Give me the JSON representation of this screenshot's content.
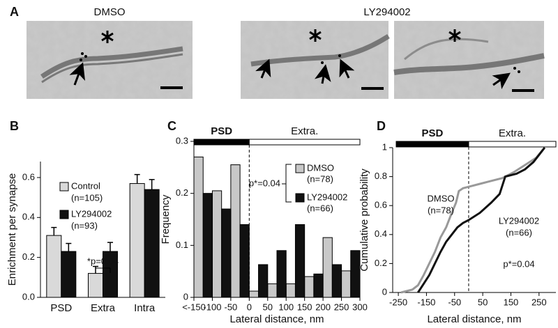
{
  "figure_a": {
    "panel": "A",
    "titles": [
      "DMSO",
      "LY294002"
    ]
  },
  "chart_data": [
    {
      "type": "bar",
      "panel": "B",
      "y_label": "Enrichment per synapse",
      "categories": [
        "PSD",
        "Extra",
        "Intra"
      ],
      "series": [
        {
          "name": "Control",
          "n": "(n=105)",
          "color": "#d9d9d9",
          "values": [
            0.31,
            0.12,
            0.57
          ],
          "errors": [
            0.04,
            0.035,
            0.045
          ]
        },
        {
          "name": "LY294002",
          "n": "(n=93)",
          "color": "#111111",
          "values": [
            0.23,
            0.23,
            0.54
          ],
          "errors": [
            0.04,
            0.045,
            0.05
          ]
        }
      ],
      "ylim": [
        0,
        0.68
      ],
      "yticks": [
        {
          "value": 0,
          "label": "0.0"
        },
        0.2,
        0.4,
        0.6
      ],
      "annotation": "*p=0.04"
    },
    {
      "type": "histogram",
      "panel": "C",
      "x_label": "Lateral distance, nm",
      "y_label": "Frequency",
      "region_labels": [
        "PSD",
        "Extra."
      ],
      "bins": [
        -150,
        -100,
        -50,
        0,
        50,
        100,
        150,
        200,
        250,
        300
      ],
      "series": [
        {
          "name": "DMSO",
          "n": "(n=78)",
          "color": "#c8c8c8",
          "values": [
            0.27,
            0.205,
            0.255,
            0.012,
            0.026,
            0.026,
            0.04,
            0.115,
            0.051
          ]
        },
        {
          "name": "LY294002",
          "n": "(n=66)",
          "color": "#111111",
          "values": [
            0.2,
            0.17,
            0.14,
            0.063,
            0.09,
            0.14,
            0.045,
            0.063,
            0.09
          ]
        }
      ],
      "xlim": [
        -150,
        300
      ],
      "xticks": [
        {
          "value": -150,
          "label": "<-150"
        },
        -100,
        -50,
        0,
        50,
        100,
        150,
        200,
        250,
        300
      ],
      "ylim": [
        0,
        0.3
      ],
      "yticks": [
        0,
        0.1,
        0.2,
        0.3
      ],
      "annotation": "p*=0.04"
    },
    {
      "type": "line",
      "panel": "D",
      "x_label": "Lateral distance, nm",
      "y_label": "Cumulative probability",
      "region_labels": [
        "PSD",
        "Extra."
      ],
      "series": [
        {
          "name": "DMSO",
          "n": "(n=78)",
          "color": "#999999",
          "x": [
            -240,
            -200,
            -180,
            -160,
            -140,
            -120,
            -100,
            -80,
            -60,
            -45,
            -35,
            -20,
            0,
            40,
            80,
            120,
            160,
            200,
            240,
            270
          ],
          "values": [
            0,
            0.02,
            0.05,
            0.12,
            0.2,
            0.28,
            0.38,
            0.45,
            0.55,
            0.62,
            0.7,
            0.72,
            0.73,
            0.75,
            0.77,
            0.79,
            0.83,
            0.88,
            0.93,
            1
          ]
        },
        {
          "name": "LY294002",
          "n": "(n=66)",
          "color": "#111111",
          "x": [
            -180,
            -160,
            -140,
            -120,
            -100,
            -80,
            -60,
            -40,
            -20,
            0,
            40,
            80,
            110,
            130,
            170,
            200,
            230,
            250,
            270
          ],
          "values": [
            0,
            0.06,
            0.12,
            0.2,
            0.28,
            0.35,
            0.4,
            0.45,
            0.48,
            0.5,
            0.55,
            0.62,
            0.68,
            0.8,
            0.82,
            0.85,
            0.9,
            0.95,
            1
          ]
        }
      ],
      "xlim": [
        -270,
        310
      ],
      "xticks": [
        -250,
        -150,
        -50,
        50,
        150,
        250
      ],
      "ylim": [
        0,
        1
      ],
      "yticks": [
        0,
        0.2,
        0.4,
        0.6,
        0.8,
        1
      ],
      "annotation": "p*=0.04"
    }
  ]
}
